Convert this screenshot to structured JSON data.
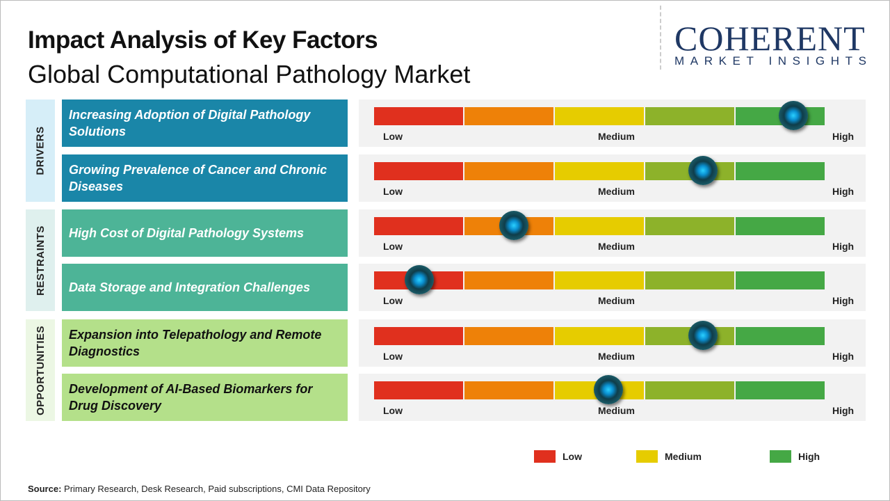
{
  "header": {
    "title": "Impact Analysis of Key Factors",
    "subtitle": "Global Computational Pathology Market"
  },
  "logo": {
    "line1": "COHERENT",
    "line2": "MARKET INSIGHTS"
  },
  "colors": {
    "low": "#e0301e",
    "low_mid": "#ee8108",
    "medium": "#e6cc00",
    "mid_high": "#8db22a",
    "high": "#45a845",
    "drivers": "#1a86a8",
    "restraints": "#4db497",
    "opportunities": "#b4e08a"
  },
  "chart_data": {
    "type": "table",
    "title": "Impact Analysis of Key Factors",
    "scale_labels": {
      "low": "Low",
      "medium": "Medium",
      "high": "High"
    },
    "categories": [
      {
        "name": "DRIVERS",
        "factors": [
          {
            "label": "Increasing Adoption of Digital Pathology Solutions",
            "impact": 0.93
          },
          {
            "label": "Growing Prevalence of Cancer and Chronic Diseases",
            "impact": 0.73
          }
        ]
      },
      {
        "name": "RESTRAINTS",
        "factors": [
          {
            "label": "High Cost of Digital Pathology Systems",
            "impact": 0.31
          },
          {
            "label": "Data Storage and Integration Challenges",
            "impact": 0.1
          }
        ]
      },
      {
        "name": "OPPORTUNITIES",
        "factors": [
          {
            "label": "Expansion into Telepathology and Remote Diagnostics",
            "impact": 0.73
          },
          {
            "label": "Development of AI-Based Biomarkers for Drug Discovery",
            "impact": 0.52
          }
        ]
      }
    ],
    "legend": [
      "Low",
      "Medium",
      "High"
    ]
  },
  "source": {
    "label": "Source:",
    "text": " Primary Research, Desk Research, Paid subscriptions, CMI Data Repository"
  }
}
